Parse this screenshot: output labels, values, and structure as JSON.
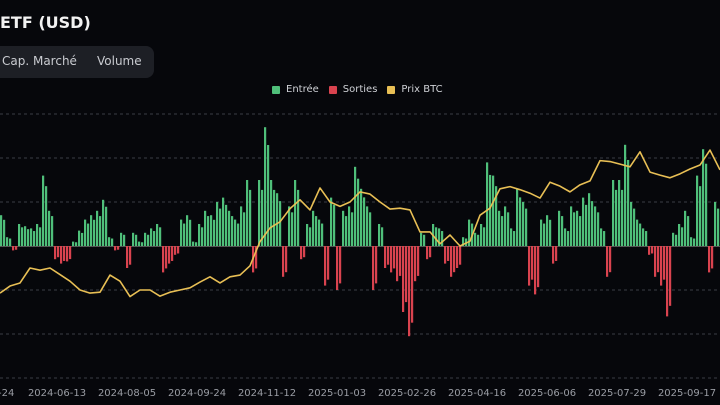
{
  "header": {
    "title": "ETF (USD)"
  },
  "tabs": [
    {
      "label": "Cap. Marché"
    },
    {
      "label": "Volume"
    }
  ],
  "colors": {
    "inflow": "#4fbf7a",
    "outflow": "#d9434f",
    "price": "#e8bf55",
    "grid": "#3a3c44",
    "background": "#06070b"
  },
  "chart_data": {
    "type": "bar",
    "legend": [
      {
        "name": "Entrée",
        "color": "#4fbf7a"
      },
      {
        "name": "Sorties",
        "color": "#d9434f"
      },
      {
        "name": "Prix BTC",
        "color": "#e8bf55"
      }
    ],
    "legend_position": "top-center",
    "x_tick_labels": [
      "-24",
      "2024-06-13",
      "2024-08-05",
      "2024-09-24",
      "2024-11-12",
      "2025-01-03",
      "2025-02-26",
      "2025-04-16",
      "2025-06-06",
      "2025-07-29",
      "2025-09-17"
    ],
    "grid": true,
    "ylim": [
      -2.9,
      3.0
    ],
    "series": [
      {
        "name": "Entrée / Sorties",
        "type": "bar",
        "values": [
          0.7,
          0.2,
          -0.1,
          0.5,
          0.45,
          0.4,
          0.5,
          1.6,
          0.8,
          -0.3,
          -0.4,
          -0.35,
          0.1,
          0.35,
          0.6,
          0.7,
          0.8,
          1.05,
          0.2,
          -0.1,
          0.3,
          -0.5,
          0.3,
          0.1,
          0.3,
          0.4,
          0.5,
          -0.6,
          -0.4,
          -0.2,
          0.6,
          0.7,
          0.1,
          0.5,
          0.8,
          0.7,
          1.0,
          1.1,
          0.8,
          0.6,
          0.9,
          1.5,
          -0.6,
          1.5,
          2.7,
          1.5,
          1.2,
          -0.7,
          0.9,
          1.5,
          -0.3,
          0.5,
          0.8,
          0.6,
          -0.9,
          1.1,
          -1.0,
          0.8,
          0.9,
          1.8,
          1.3,
          0.9,
          -1.0,
          0.5,
          -0.5,
          -0.6,
          -0.8,
          -1.5,
          -2.05,
          -0.8,
          0.3,
          -0.3,
          0.5,
          0.4,
          -0.4,
          -0.7,
          -0.5,
          0.2,
          0.6,
          0.3,
          0.5,
          1.9,
          1.6,
          0.8,
          0.9,
          0.4,
          1.3,
          1.0,
          -0.9,
          -1.1,
          0.6,
          0.7,
          -0.4,
          0.8,
          0.4,
          0.9,
          0.8,
          1.1,
          1.2,
          0.9,
          0.4,
          -0.7,
          1.5,
          1.5,
          2.3,
          1.0,
          0.6,
          0.4,
          -0.2,
          -0.7,
          -0.9,
          -1.6,
          0.3,
          0.5,
          0.8,
          0.2,
          1.6,
          2.2,
          -0.6,
          1.0
        ]
      },
      {
        "name": "Prix BTC",
        "type": "line",
        "values": [
          -1.07,
          -0.91,
          -0.84,
          -0.5,
          -0.55,
          -0.5,
          -0.65,
          -0.8,
          -1.0,
          -1.07,
          -1.05,
          -0.66,
          -0.8,
          -1.15,
          -1.0,
          -1.0,
          -1.14,
          -1.05,
          -1.0,
          -0.95,
          -0.82,
          -0.7,
          -0.84,
          -0.7,
          -0.66,
          -0.45,
          0.1,
          0.41,
          0.55,
          0.85,
          1.05,
          0.82,
          1.32,
          1.0,
          0.9,
          1.0,
          1.23,
          1.18,
          1.0,
          0.84,
          0.86,
          0.82,
          0.32,
          0.32,
          0.05,
          0.25,
          0,
          0.11,
          0.7,
          0.86,
          1.3,
          1.35,
          1.28,
          1.2,
          1.09,
          1.45,
          1.36,
          1.23,
          1.39,
          1.48,
          1.94,
          1.92,
          1.86,
          1.8,
          2.14,
          1.68,
          1.61,
          1.55,
          1.64,
          1.75,
          1.84,
          2.18,
          1.73
        ]
      }
    ]
  }
}
